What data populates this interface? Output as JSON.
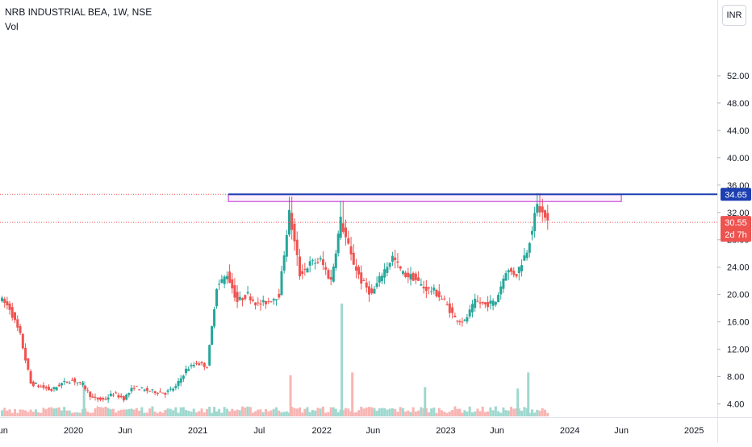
{
  "header": {
    "symbol_line": "NRB INDUSTRIAL BEA, 1W, NSE",
    "volume_label": "Vol",
    "currency_button": "INR"
  },
  "price_scale": {
    "current_price_label": "30.55",
    "countdown_label": "2d 7h",
    "resistance_label": "34.65"
  },
  "colors": {
    "up": "#26a69a",
    "down": "#ef5350",
    "up_volume": "#9fd8cf",
    "down_volume": "#f7b5b3",
    "resistance_line": "#1c3fb1",
    "zone_border": "#c026d3",
    "price_line": "#ef5350",
    "axis_text": "#131722"
  },
  "chart_data": {
    "type": "candlestick",
    "title": "NRB INDUSTRIAL BEA, 1W, NSE",
    "y_axis": {
      "ticks": [
        "4.00",
        "8.00",
        "12.00",
        "16.00",
        "20.00",
        "24.00",
        "28.00",
        "32.00",
        "36.00",
        "40.00",
        "44.00",
        "48.00",
        "52.00"
      ],
      "range": [
        3,
        56
      ]
    },
    "x_axis": {
      "ticks": [
        "Jun",
        "2020",
        "Jun",
        "2021",
        "Jul",
        "2022",
        "Jun",
        "2023",
        "Jun",
        "2024",
        "Jun",
        "2025"
      ],
      "range": [
        "2019-06",
        "2025-03"
      ]
    },
    "price_path": [
      [
        "2019-06",
        19.5
      ],
      [
        "2019-07",
        18.0
      ],
      [
        "2019-08",
        14.0
      ],
      [
        "2019-09",
        7.0
      ],
      [
        "2019-10",
        6.5
      ],
      [
        "2019-11",
        6.0
      ],
      [
        "2019-12",
        7.0
      ],
      [
        "2020-01",
        7.5
      ],
      [
        "2020-02",
        6.8
      ],
      [
        "2020-03",
        4.8
      ],
      [
        "2020-04",
        4.6
      ],
      [
        "2020-05",
        5.5
      ],
      [
        "2020-06",
        4.8
      ],
      [
        "2020-07",
        6.5
      ],
      [
        "2020-08",
        6.0
      ],
      [
        "2020-09",
        5.8
      ],
      [
        "2020-10",
        5.6
      ],
      [
        "2020-11",
        6.5
      ],
      [
        "2020-12",
        9.0
      ],
      [
        "2021-01",
        10.0
      ],
      [
        "2021-02",
        9.5
      ],
      [
        "2021-03",
        21.0
      ],
      [
        "2021-04",
        23.0
      ],
      [
        "2021-05",
        19.0
      ],
      [
        "2021-06",
        20.0
      ],
      [
        "2021-07",
        18.5
      ],
      [
        "2021-08",
        19.0
      ],
      [
        "2021-09",
        20.0
      ],
      [
        "2021-10",
        32.0
      ],
      [
        "2021-11",
        23.0
      ],
      [
        "2021-12",
        24.5
      ],
      [
        "2022-01",
        25.0
      ],
      [
        "2022-02",
        22.0
      ],
      [
        "2022-03",
        31.0
      ],
      [
        "2022-04",
        25.5
      ],
      [
        "2022-05",
        22.0
      ],
      [
        "2022-06",
        20.0
      ],
      [
        "2022-07",
        23.0
      ],
      [
        "2022-08",
        25.5
      ],
      [
        "2022-09",
        23.0
      ],
      [
        "2022-10",
        22.5
      ],
      [
        "2022-11",
        21.0
      ],
      [
        "2022-12",
        20.5
      ],
      [
        "2023-01",
        19.0
      ],
      [
        "2023-02",
        16.5
      ],
      [
        "2023-03",
        16.0
      ],
      [
        "2023-04",
        19.0
      ],
      [
        "2023-05",
        18.5
      ],
      [
        "2023-06",
        19.0
      ],
      [
        "2023-07",
        23.5
      ],
      [
        "2023-08",
        23.0
      ],
      [
        "2023-09",
        26.5
      ],
      [
        "2023-10",
        33.0
      ],
      [
        "2023-11",
        30.55
      ]
    ],
    "volume_spikes": [
      {
        "date": "2021-10",
        "kind": "down",
        "level": 0.28
      },
      {
        "date": "2022-03",
        "kind": "up",
        "level": 0.77
      },
      {
        "date": "2022-04",
        "kind": "down",
        "level": 0.3
      },
      {
        "date": "2022-11",
        "kind": "up",
        "level": 0.2
      },
      {
        "date": "2023-08",
        "kind": "up",
        "level": 0.19
      },
      {
        "date": "2023-09",
        "kind": "up",
        "level": 0.3
      },
      {
        "date": "2020-02",
        "kind": "up",
        "level": 0.24
      }
    ],
    "resistance_level": 34.65,
    "last_price": 30.55,
    "resistance_zone": {
      "from": "2021-04",
      "to": "2024-06",
      "low": 33.6,
      "high": 34.6
    }
  }
}
